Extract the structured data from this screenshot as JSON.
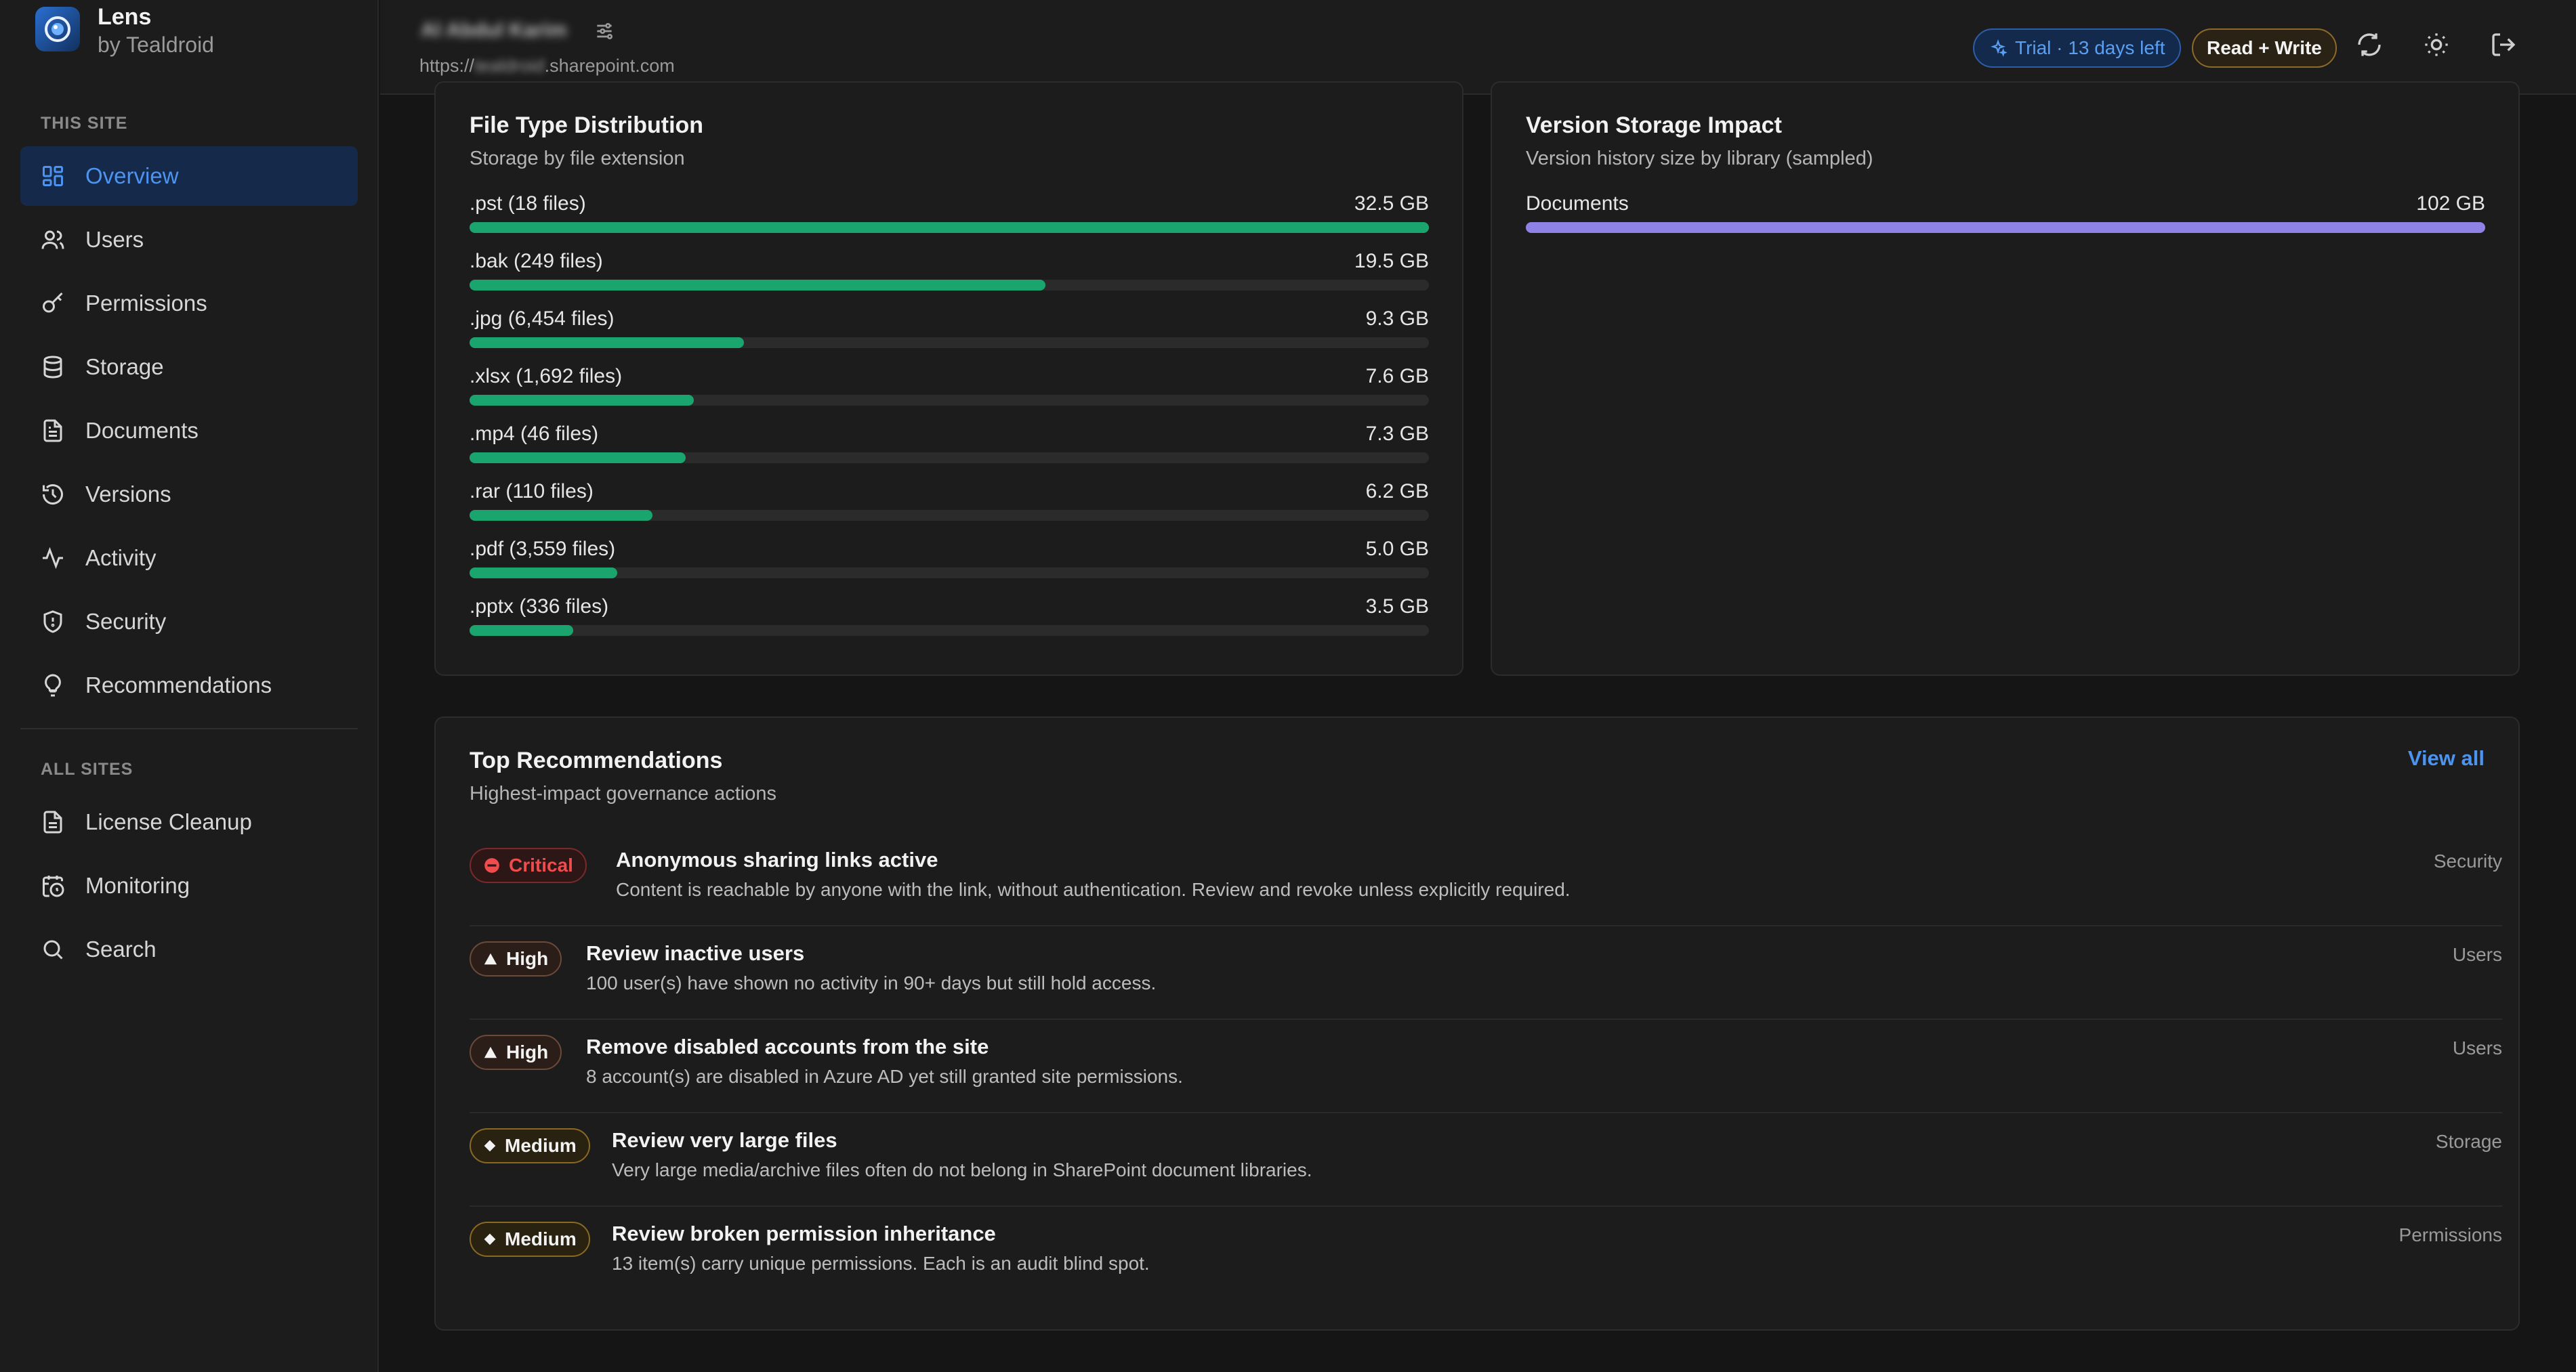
{
  "brand": {
    "title": "Lens",
    "subtitle": "by Tealdroid"
  },
  "sidebar": {
    "section_this_site": "THIS SITE",
    "this_site_items": [
      {
        "label": "Overview",
        "icon": "grid-icon"
      },
      {
        "label": "Users",
        "icon": "users-icon"
      },
      {
        "label": "Permissions",
        "icon": "key-icon"
      },
      {
        "label": "Storage",
        "icon": "database-icon"
      },
      {
        "label": "Documents",
        "icon": "document-icon"
      },
      {
        "label": "Versions",
        "icon": "history-icon"
      },
      {
        "label": "Activity",
        "icon": "activity-icon"
      },
      {
        "label": "Security",
        "icon": "shield-icon"
      },
      {
        "label": "Recommendations",
        "icon": "lightbulb-icon"
      }
    ],
    "section_all_sites": "ALL SITES",
    "all_sites_items": [
      {
        "label": "License Cleanup",
        "icon": "document-icon"
      },
      {
        "label": "Monitoring",
        "icon": "calendar-clock-icon"
      },
      {
        "label": "Search",
        "icon": "search-icon"
      }
    ]
  },
  "header": {
    "site_name": "Al Abdul Karim",
    "url_prefix": "https://",
    "url_hidden": "tealdroid",
    "url_suffix": ".sharepoint.com",
    "trial_label": "Trial · 13 days left",
    "mode_label": "Read + Write"
  },
  "file_types": {
    "title": "File Type Distribution",
    "subtitle": "Storage by file extension",
    "rows": [
      {
        "label": ".pst (18 files)",
        "value": "32.5 GB",
        "fraction": 1.0
      },
      {
        "label": ".bak (249 files)",
        "value": "19.5 GB",
        "fraction": 0.6
      },
      {
        "label": ".jpg (6,454 files)",
        "value": "9.3 GB",
        "fraction": 0.286
      },
      {
        "label": ".xlsx (1,692 files)",
        "value": "7.6 GB",
        "fraction": 0.234
      },
      {
        "label": ".mp4 (46 files)",
        "value": "7.3 GB",
        "fraction": 0.225
      },
      {
        "label": ".rar (110 files)",
        "value": "6.2 GB",
        "fraction": 0.191
      },
      {
        "label": ".pdf (3,559 files)",
        "value": "5.0 GB",
        "fraction": 0.154
      },
      {
        "label": ".pptx (336 files)",
        "value": "3.5 GB",
        "fraction": 0.108
      }
    ]
  },
  "version_storage": {
    "title": "Version Storage Impact",
    "subtitle": "Version history size by library (sampled)",
    "rows": [
      {
        "label": "Documents",
        "value": "102 GB",
        "fraction": 1.0
      }
    ]
  },
  "recommendations": {
    "title": "Top Recommendations",
    "subtitle": "Highest-impact governance actions",
    "view_all": "View all",
    "items": [
      {
        "severity": "Critical",
        "title": "Anonymous sharing links active",
        "description": "Content is reachable by anyone with the link, without authentication. Review and revoke unless explicitly required.",
        "category": "Security"
      },
      {
        "severity": "High",
        "title": "Review inactive users",
        "description": "100 user(s) have shown no activity in 90+ days but still hold access.",
        "category": "Users"
      },
      {
        "severity": "High",
        "title": "Remove disabled accounts from the site",
        "description": "8 account(s) are disabled in Azure AD yet still granted site permissions.",
        "category": "Users"
      },
      {
        "severity": "Medium",
        "title": "Review very large files",
        "description": "Very large media/archive files often do not belong in SharePoint document libraries.",
        "category": "Storage"
      },
      {
        "severity": "Medium",
        "title": "Review broken permission inheritance",
        "description": "13 item(s) carry unique permissions. Each is an audit blind spot.",
        "category": "Permissions"
      }
    ]
  },
  "colors": {
    "accent": "#4d94f0",
    "bar_green": "#1aa56e",
    "bar_purple": "#8f82e6",
    "critical": "#ef4d4d"
  }
}
